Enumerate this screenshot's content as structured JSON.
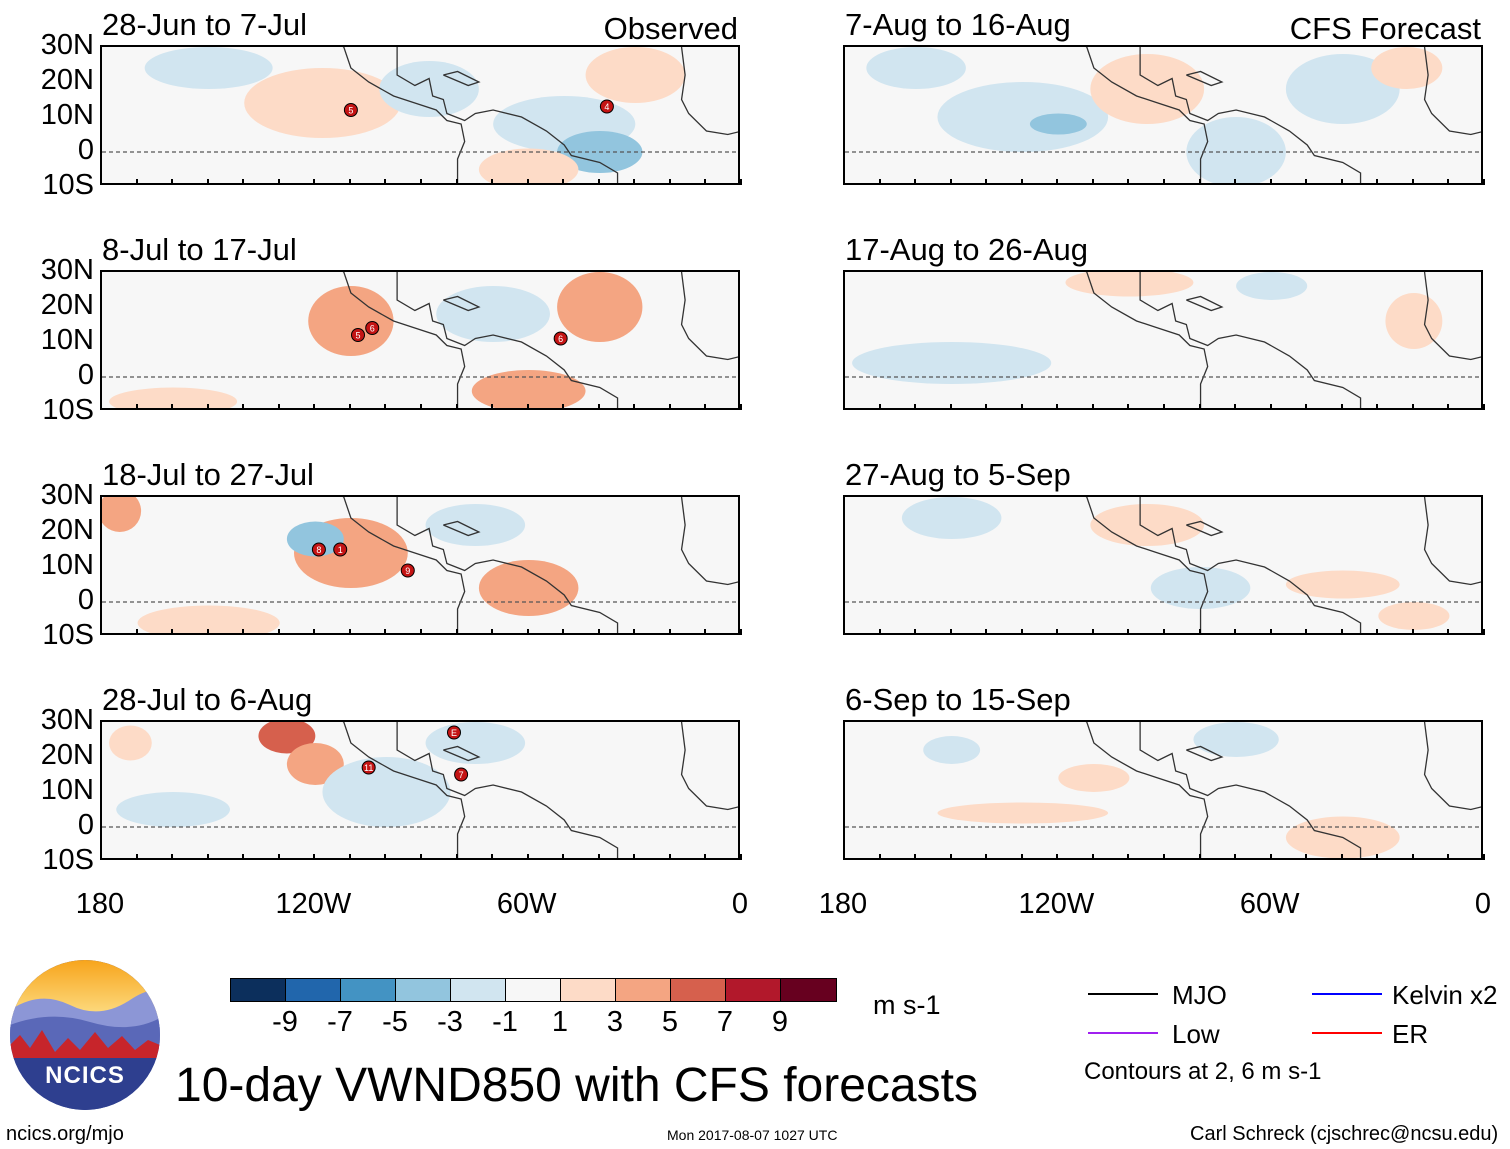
{
  "observed_label": "Observed",
  "forecast_label": "CFS Forecast",
  "latitudes": [
    "30N",
    "20N",
    "10N",
    "0",
    "10S"
  ],
  "longitudes": [
    "180",
    "120W",
    "60W",
    "0"
  ],
  "observed_panels": [
    {
      "title": "28-Jun to 7-Jul",
      "storms": [
        {
          "label": "5",
          "lon": -110,
          "lat": 12
        },
        {
          "label": "4",
          "lon": -38,
          "lat": 13
        }
      ]
    },
    {
      "title": "8-Jul to 17-Jul",
      "storms": [
        {
          "label": "5",
          "lon": -108,
          "lat": 12
        },
        {
          "label": "6",
          "lon": -104,
          "lat": 14
        },
        {
          "label": "6",
          "lon": -51,
          "lat": 11
        }
      ]
    },
    {
      "title": "18-Jul to 27-Jul",
      "storms": [
        {
          "label": "8",
          "lon": -119,
          "lat": 15
        },
        {
          "label": "1",
          "lon": -113,
          "lat": 15
        },
        {
          "label": "9",
          "lon": -94,
          "lat": 9
        }
      ]
    },
    {
      "title": "28-Jul to 6-Aug",
      "storms": [
        {
          "label": "E",
          "lon": -81,
          "lat": 27
        },
        {
          "label": "11",
          "lon": -105,
          "lat": 17
        },
        {
          "label": "7",
          "lon": -79,
          "lat": 15
        }
      ]
    }
  ],
  "forecast_panels": [
    {
      "title": "7-Aug to 16-Aug"
    },
    {
      "title": "17-Aug to 26-Aug"
    },
    {
      "title": "27-Aug to 5-Sep"
    },
    {
      "title": "6-Sep to 15-Sep"
    }
  ],
  "colorbar": {
    "colors": [
      "#0c2f5c",
      "#2166ac",
      "#4393c3",
      "#92c5de",
      "#d1e5f0",
      "#f7f7f7",
      "#fddbc7",
      "#f4a582",
      "#d6604d",
      "#b2182b",
      "#67001f"
    ],
    "labels": [
      "-9",
      "-7",
      "-5",
      "-3",
      "-1",
      "1",
      "3",
      "5",
      "7",
      "9"
    ],
    "units": "m s-1"
  },
  "legend": {
    "mjo": "MJO",
    "low": "Low",
    "kelvin": "Kelvin x2",
    "er": "ER",
    "contours": "Contours at 2, 6 m s-1",
    "colors": {
      "mjo": "#000000",
      "low": "#a020f0",
      "kelvin": "#0000ff",
      "er": "#ff0000"
    }
  },
  "main_title": "10-day VWND850 with CFS forecasts",
  "logo_text": "NCICS",
  "website": "ncics.org/mjo",
  "timestamp": "Mon 2017-08-07 1027 UTC",
  "author": "Carl Schreck (cjschrec@ncsu.edu)"
}
